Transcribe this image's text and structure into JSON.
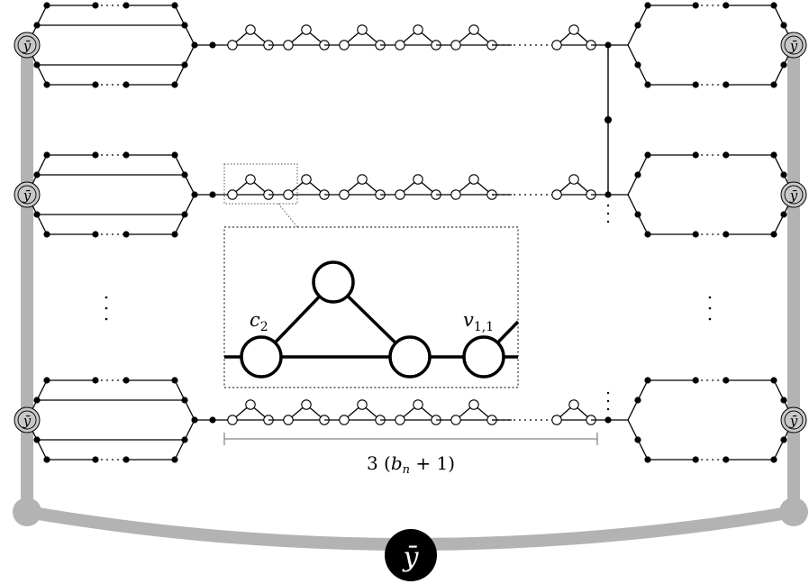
{
  "labels": {
    "y_bar": "ȳ",
    "c2_base": "c",
    "c2_sub": "2",
    "v11_base": "v",
    "v11_sub": "1,1",
    "width_prefix": "3 (",
    "width_var": "b",
    "width_sub": "n",
    "width_suffix": " + 1)"
  },
  "colors": {
    "ink": "#000000",
    "hub_gray": "#b3b3b3",
    "node_fill_open": "#ffffff",
    "node_fill_solid": "#000000"
  }
}
